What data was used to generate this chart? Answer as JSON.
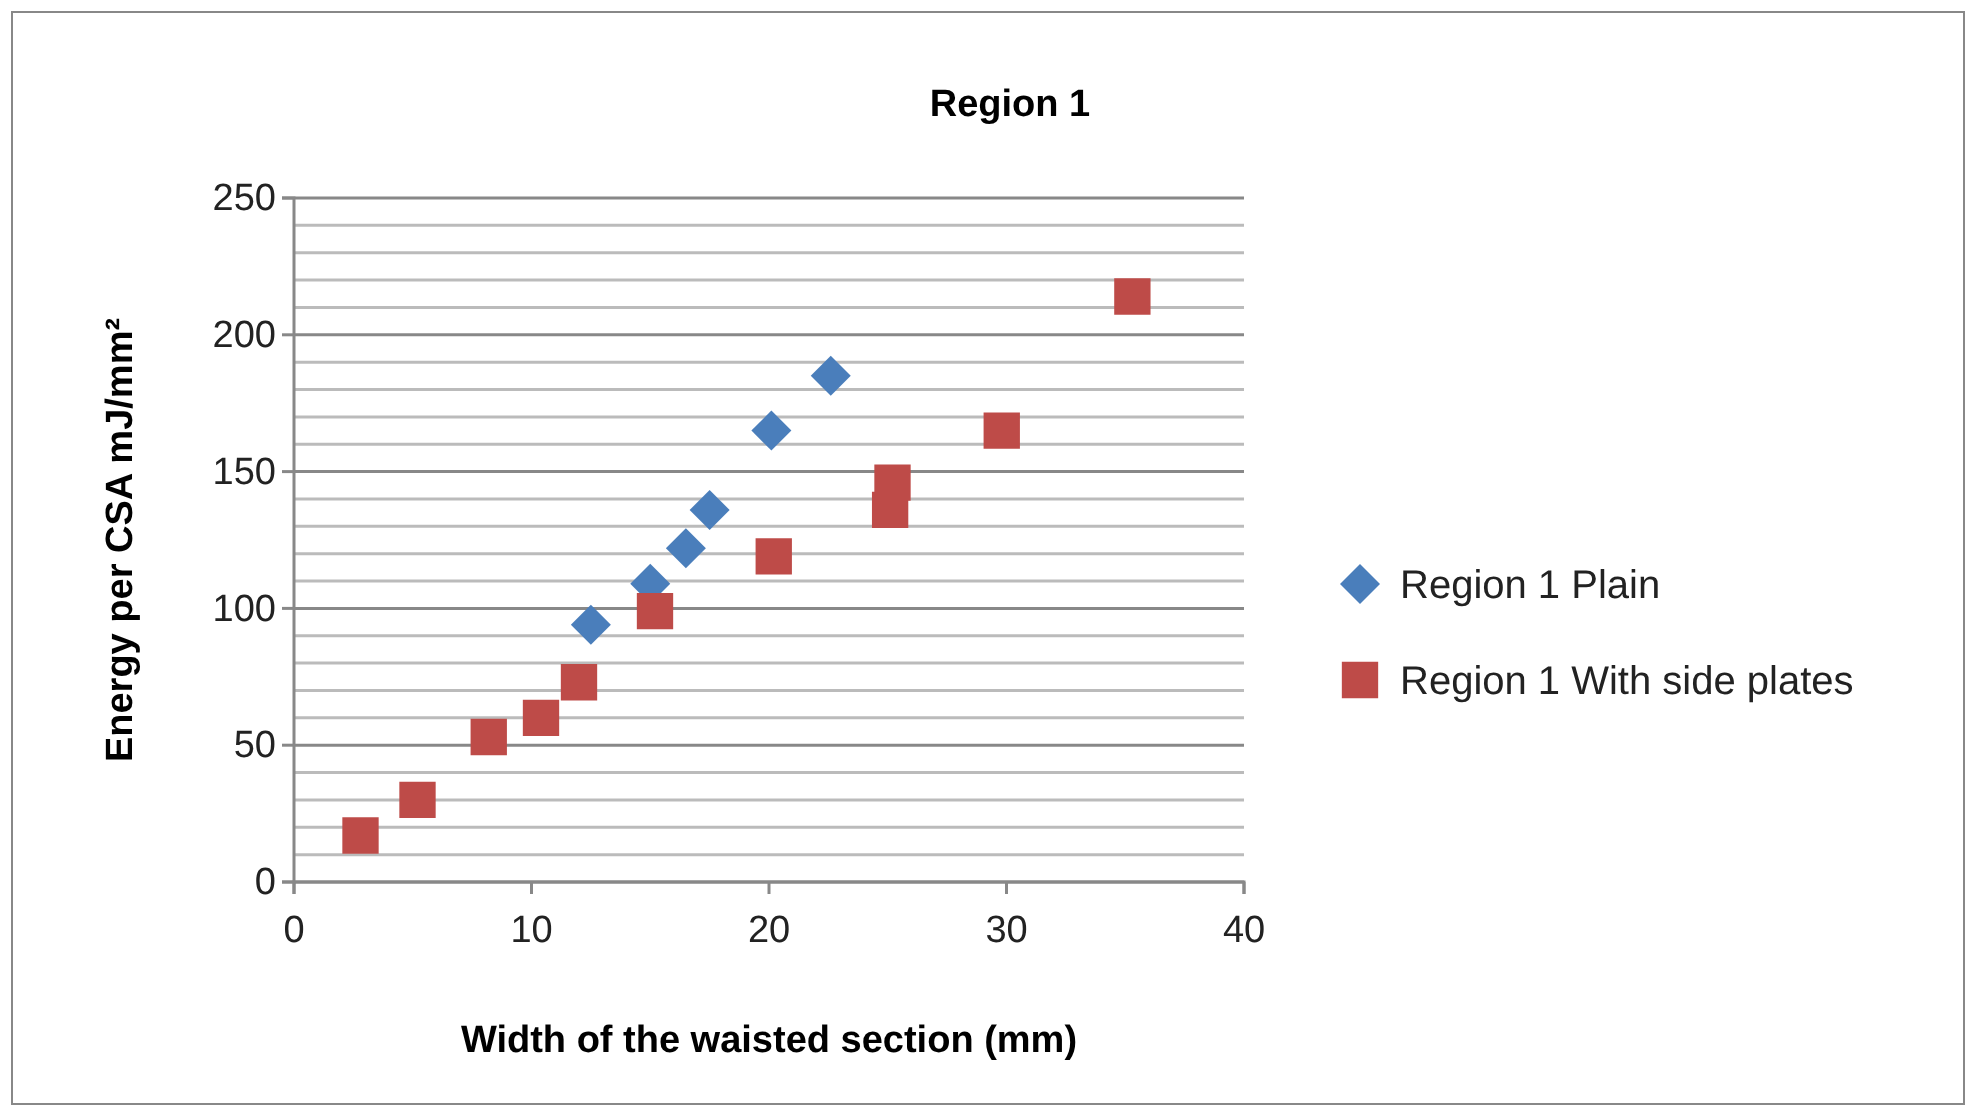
{
  "chart_data": {
    "type": "scatter",
    "title": "Region 1",
    "xlabel": "Width of the waisted section (mm)",
    "ylabel": "Energy per CSA mJ/mm²",
    "xlim": [
      0,
      40
    ],
    "xticks": [
      0,
      10,
      20,
      30,
      40
    ],
    "ylim": [
      0,
      250
    ],
    "yticks": [
      0,
      {
        "value": 10,
        "label": null
      },
      {
        "value": 20,
        "label": null
      },
      {
        "value": 30,
        "label": null
      },
      {
        "value": 40,
        "label": null
      },
      50,
      {
        "value": 60,
        "label": null
      },
      {
        "value": 70,
        "label": null
      },
      {
        "value": 80,
        "label": null
      },
      {
        "value": 90,
        "label": null
      },
      100,
      {
        "value": 110,
        "label": null
      },
      {
        "value": 120,
        "label": null
      },
      {
        "value": 130,
        "label": null
      },
      {
        "value": 140,
        "label": null
      },
      150,
      {
        "value": 160,
        "label": null
      },
      {
        "value": 170,
        "label": null
      },
      {
        "value": 180,
        "label": null
      },
      {
        "value": 190,
        "label": null
      },
      200,
      {
        "value": 210,
        "label": null
      },
      {
        "value": 220,
        "label": null
      },
      {
        "value": 230,
        "label": null
      },
      {
        "value": 240,
        "label": null
      },
      250
    ],
    "grid": "y",
    "legend": "right",
    "series": [
      {
        "name": "Region 1 Plain",
        "color": "#4a7ebb",
        "marker": "diamond",
        "x": [
          12.5,
          15.0,
          16.5,
          17.5,
          20.1,
          22.6
        ],
        "values": [
          94,
          109,
          122,
          136,
          165,
          185
        ]
      },
      {
        "name": "Region 1 With side plates",
        "color": "#be4b48",
        "marker": "square",
        "x": [
          2.8,
          5.2,
          8.2,
          10.4,
          12.0,
          15.2,
          20.2,
          25.1,
          25.2,
          29.8,
          35.3
        ],
        "values": [
          17,
          30,
          53,
          60,
          73,
          99,
          119,
          136,
          146,
          165,
          214
        ]
      }
    ]
  }
}
